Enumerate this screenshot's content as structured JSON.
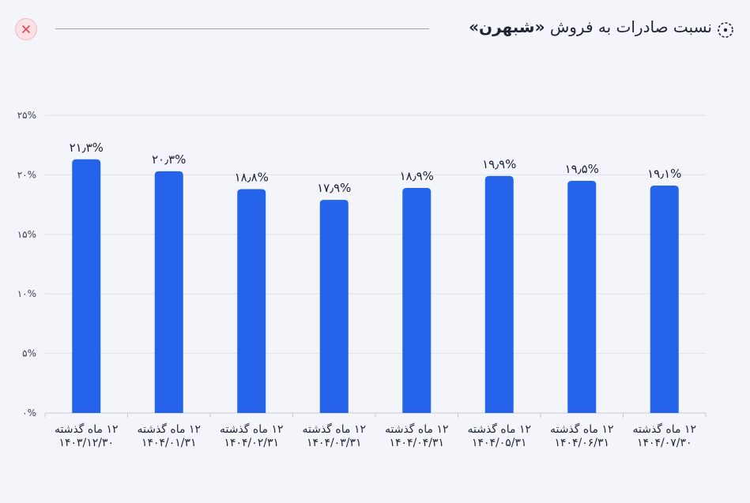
{
  "header": {
    "title_prefix": "نسبت صادرات به فروش ",
    "title_company": "«شبهرن»",
    "close_icon": "close-icon",
    "title_icon": "dotted-circle-icon"
  },
  "colors": {
    "bar": "#2563eb",
    "grid": "#dde1ea",
    "background": "#f3f5fa",
    "close_accent": "#e0505f"
  },
  "chart_data": {
    "type": "bar",
    "ylim": [
      0,
      25
    ],
    "yticks": [
      "۰%",
      "۵%",
      "۱۰%",
      "۱۵%",
      "۲۰%",
      "۲۵%"
    ],
    "grid": true,
    "categories": [
      [
        "۱۲ ماه گذشته",
        "۱۴۰۳/۱۲/۳۰"
      ],
      [
        "۱۲ ماه گذشته",
        "۱۴۰۴/۰۱/۳۱"
      ],
      [
        "۱۲ ماه گذشته",
        "۱۴۰۴/۰۲/۳۱"
      ],
      [
        "۱۲ ماه گذشته",
        "۱۴۰۴/۰۳/۳۱"
      ],
      [
        "۱۲ ماه گذشته",
        "۱۴۰۴/۰۴/۳۱"
      ],
      [
        "۱۲ ماه گذشته",
        "۱۴۰۴/۰۵/۳۱"
      ],
      [
        "۱۲ ماه گذشته",
        "۱۴۰۴/۰۶/۳۱"
      ],
      [
        "۱۲ ماه گذشته",
        "۱۴۰۴/۰۷/۳۰"
      ]
    ],
    "values": [
      21.3,
      20.3,
      18.8,
      17.9,
      18.9,
      19.9,
      19.5,
      19.1
    ],
    "value_labels": [
      "۲۱٫۳%",
      "۲۰٫۳%",
      "۱۸٫۸%",
      "۱۷٫۹%",
      "۱۸٫۹%",
      "۱۹٫۹%",
      "۱۹٫۵%",
      "۱۹٫۱%"
    ]
  }
}
